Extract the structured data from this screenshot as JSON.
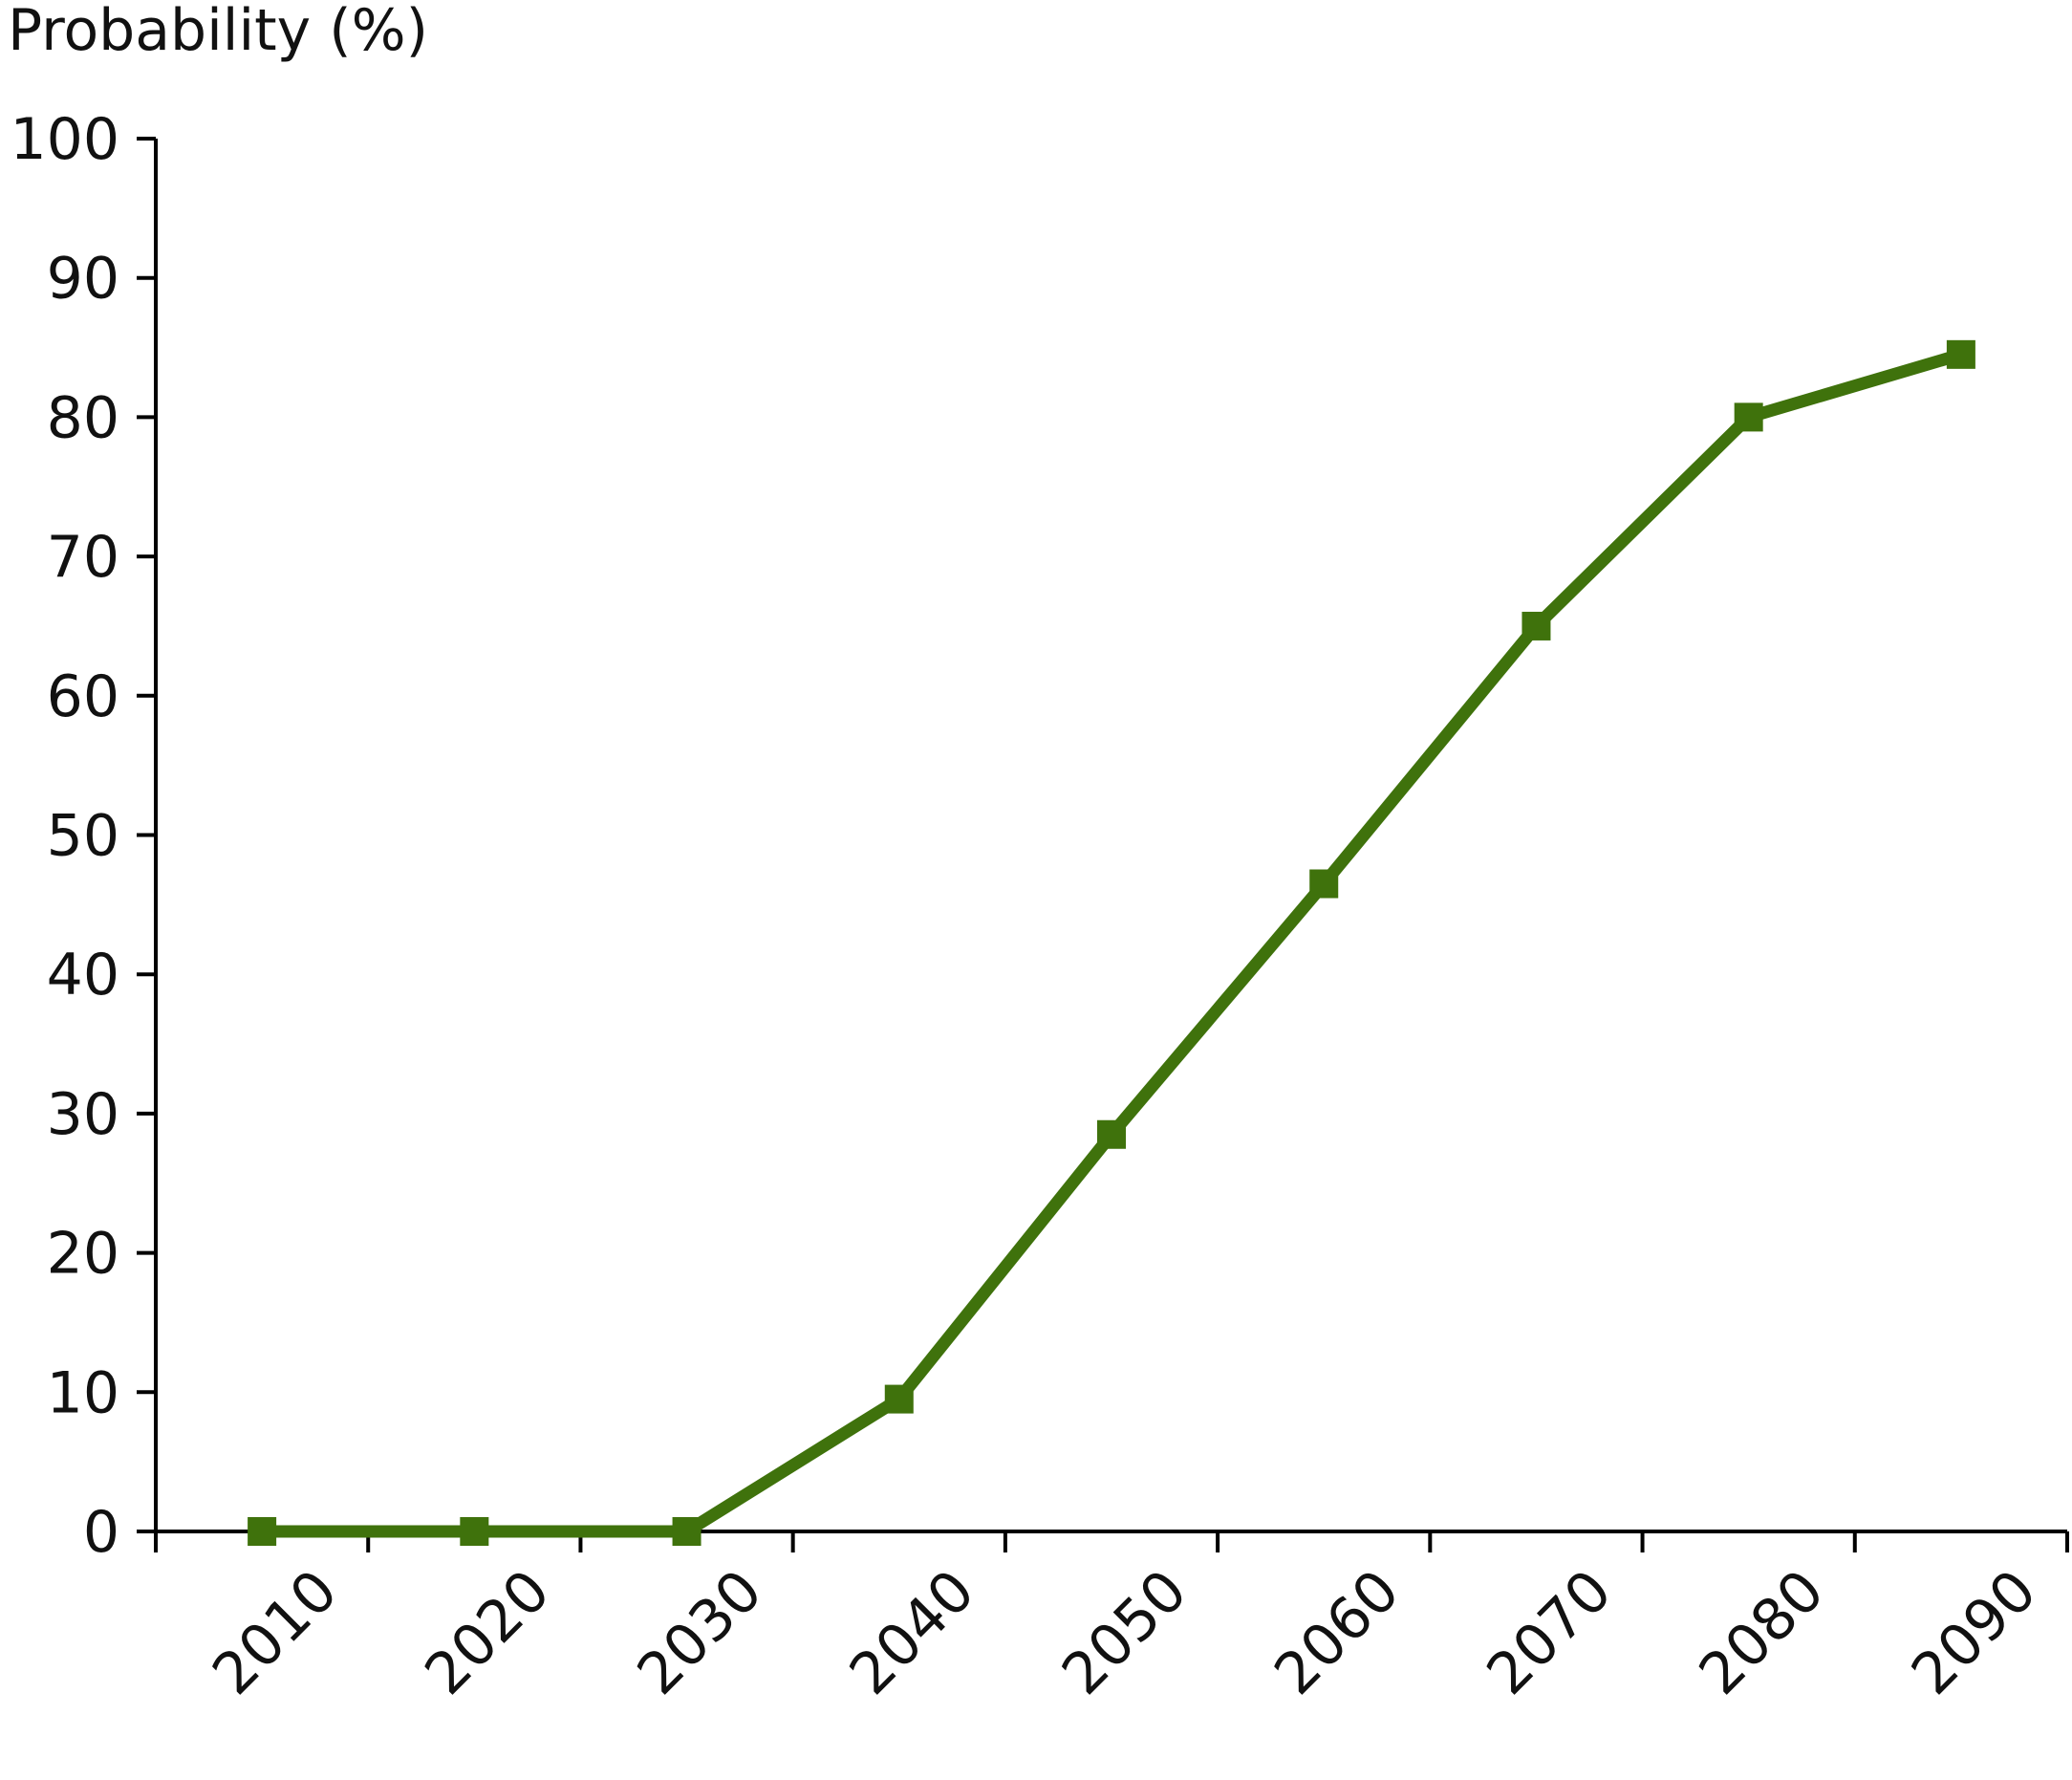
{
  "chart_data": {
    "type": "line",
    "title": "",
    "ylabel": "Probability (%)",
    "xlabel": "",
    "categories": [
      "2010",
      "2020",
      "2030",
      "2040",
      "2050",
      "2060",
      "2070",
      "2080",
      "2090"
    ],
    "series": [
      {
        "name": "Probability",
        "values": [
          0,
          0,
          0,
          9.5,
          28.5,
          46.5,
          65,
          80,
          84.5
        ]
      }
    ],
    "ylim": [
      0,
      100
    ],
    "yticks": [
      0,
      10,
      20,
      30,
      40,
      50,
      60,
      70,
      80,
      90,
      100
    ],
    "grid": false,
    "legend": "none",
    "colors": {
      "series": "#3f720c",
      "axis": "#000000"
    }
  }
}
